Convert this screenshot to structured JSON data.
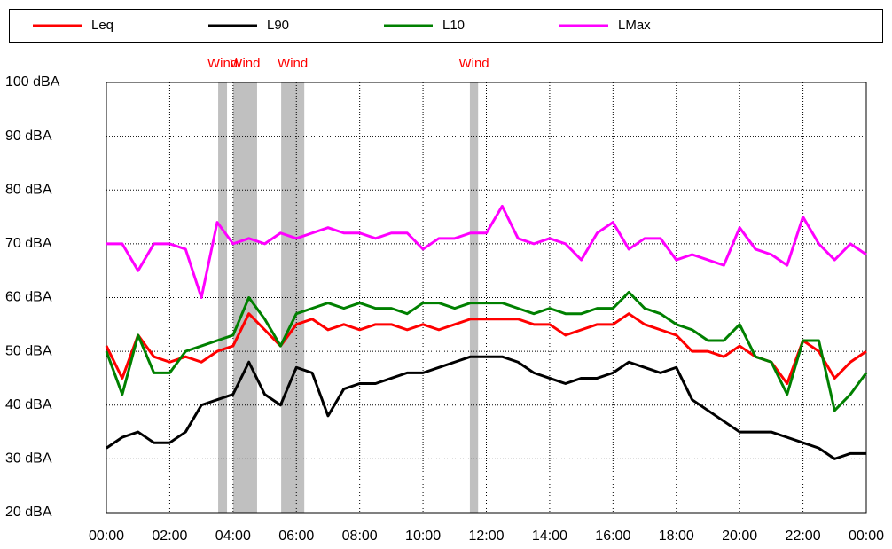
{
  "chart_data": {
    "type": "line",
    "x": [
      0,
      0.5,
      1,
      1.5,
      2,
      2.5,
      3,
      3.5,
      4,
      4.5,
      5,
      5.5,
      6,
      6.5,
      7,
      7.5,
      8,
      8.5,
      9,
      9.5,
      10,
      10.5,
      11,
      11.5,
      12,
      12.5,
      13,
      13.5,
      14,
      14.5,
      15,
      15.5,
      16,
      16.5,
      17,
      17.5,
      18,
      18.5,
      19,
      19.5,
      20,
      20.5,
      21,
      21.5,
      22,
      22.5,
      23,
      23.5,
      24
    ],
    "series": [
      {
        "name": "Leq",
        "color": "#ff0000",
        "values": [
          51,
          45,
          53,
          49,
          48,
          49,
          48,
          50,
          51,
          57,
          54,
          51,
          55,
          56,
          54,
          55,
          54,
          55,
          55,
          54,
          55,
          54,
          55,
          56,
          56,
          56,
          56,
          55,
          55,
          53,
          54,
          55,
          55,
          57,
          55,
          54,
          53,
          50,
          50,
          49,
          51,
          49,
          48,
          44,
          52,
          50,
          45,
          48,
          50
        ]
      },
      {
        "name": "L90",
        "color": "#000000",
        "values": [
          32,
          34,
          35,
          33,
          33,
          35,
          40,
          41,
          42,
          48,
          42,
          40,
          47,
          46,
          38,
          43,
          44,
          44,
          45,
          46,
          46,
          47,
          48,
          49,
          49,
          49,
          48,
          46,
          45,
          44,
          45,
          45,
          46,
          48,
          47,
          46,
          47,
          41,
          39,
          37,
          35,
          35,
          35,
          34,
          33,
          32,
          30,
          31,
          31
        ]
      },
      {
        "name": "L10",
        "color": "#008000",
        "values": [
          50,
          42,
          53,
          46,
          46,
          50,
          51,
          52,
          53,
          60,
          56,
          51,
          57,
          58,
          59,
          58,
          59,
          58,
          58,
          57,
          59,
          59,
          58,
          59,
          59,
          59,
          58,
          57,
          58,
          57,
          57,
          58,
          58,
          61,
          58,
          57,
          55,
          54,
          52,
          52,
          55,
          49,
          48,
          42,
          52,
          52,
          39,
          42,
          46
        ]
      },
      {
        "name": "LMax",
        "color": "#ff00ff",
        "values": [
          70,
          70,
          65,
          70,
          70,
          69,
          60,
          74,
          70,
          71,
          70,
          72,
          71,
          72,
          73,
          72,
          72,
          71,
          72,
          72,
          69,
          71,
          71,
          72,
          72,
          77,
          71,
          70,
          71,
          70,
          67,
          72,
          74,
          69,
          71,
          71,
          67,
          68,
          67,
          66,
          73,
          69,
          68,
          66,
          75,
          70,
          67,
          70,
          68
        ]
      }
    ],
    "annotations": [
      {
        "label": "Wind",
        "start": 3.53,
        "end": 3.81
      },
      {
        "label": "Wind",
        "start": 4.0,
        "end": 4.76
      },
      {
        "label": "Wind",
        "start": 5.52,
        "end": 6.25
      },
      {
        "label": "Wind",
        "start": 11.48,
        "end": 11.74
      }
    ],
    "xlim": [
      0,
      24
    ],
    "xticks": [
      {
        "value": 0,
        "label": "00:00"
      },
      {
        "value": 2,
        "label": "02:00"
      },
      {
        "value": 4,
        "label": "04:00"
      },
      {
        "value": 6,
        "label": "06:00"
      },
      {
        "value": 8,
        "label": "08:00"
      },
      {
        "value": 10,
        "label": "10:00"
      },
      {
        "value": 12,
        "label": "12:00"
      },
      {
        "value": 14,
        "label": "14:00"
      },
      {
        "value": 16,
        "label": "16:00"
      },
      {
        "value": 18,
        "label": "18:00"
      },
      {
        "value": 20,
        "label": "20:00"
      },
      {
        "value": 22,
        "label": "22:00"
      },
      {
        "value": 24,
        "label": "00:00"
      }
    ],
    "ylim": [
      20,
      100
    ],
    "yticks": [
      {
        "value": 20,
        "label": "20 dBA"
      },
      {
        "value": 30,
        "label": "30 dBA"
      },
      {
        "value": 40,
        "label": "40 dBA"
      },
      {
        "value": 50,
        "label": "50 dBA"
      },
      {
        "value": 60,
        "label": "60 dBA"
      },
      {
        "value": 70,
        "label": "70 dBA"
      },
      {
        "value": 80,
        "label": "80 dBA"
      },
      {
        "value": 90,
        "label": "90 dBA"
      },
      {
        "value": 100,
        "label": "100 dBA"
      }
    ],
    "grid": true,
    "legend": "top",
    "annotation_color": "#c0c0c0",
    "annotation_text_color": "#ff0000"
  }
}
